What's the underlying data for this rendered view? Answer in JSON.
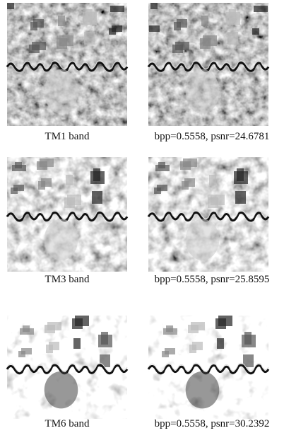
{
  "figure": {
    "rows": [
      {
        "band": "TM1 band",
        "result": "bpp=0.5558, psnr=24.6781"
      },
      {
        "band": "TM3 band",
        "result": "bpp=0.5558, psnr=25.8595"
      },
      {
        "band": "TM6 band",
        "result": "bpp=0.5558, psnr=30.2392"
      }
    ]
  }
}
